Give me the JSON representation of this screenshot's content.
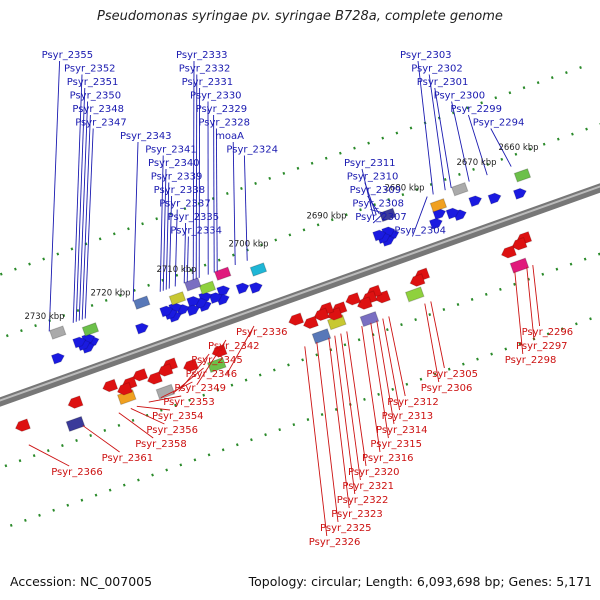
{
  "title": "Pseudomonas syringae pv. syringae B728a, complete genome",
  "accession": "Accession: NC_007005",
  "topology": "Topology: circular; Length: 6,093,698 bp; Genes: 5,171",
  "colors": {
    "forward": "#1a1ae0",
    "reverse": "#dd1111",
    "backbone": "#777777"
  },
  "ticks": [
    {
      "label": "2660 kbp",
      "t": 0.91
    },
    {
      "label": "2670 kbp",
      "t": 0.84
    },
    {
      "label": "2680 kbp",
      "t": 0.72
    },
    {
      "label": "2690 kbp",
      "t": 0.59
    },
    {
      "label": "2700 kbp",
      "t": 0.46
    },
    {
      "label": "2710 kbp",
      "t": 0.34
    },
    {
      "label": "2720 kbp",
      "t": 0.23
    },
    {
      "label": "2730 kbp",
      "t": 0.12
    }
  ],
  "forward_genes": [
    {
      "name": "Psyr_2294",
      "t": 0.88
    },
    {
      "name": "Psyr_2299",
      "t": 0.84
    },
    {
      "name": "Psyr_2300",
      "t": 0.81
    },
    {
      "name": "Psyr_2301",
      "t": 0.78
    },
    {
      "name": "Psyr_2302",
      "t": 0.77
    },
    {
      "name": "Psyr_2303",
      "t": 0.75
    },
    {
      "name": "Psyr_2304",
      "t": 0.74
    },
    {
      "name": "Psyr_2307",
      "t": 0.67
    },
    {
      "name": "Psyr_2308",
      "t": 0.665
    },
    {
      "name": "Psyr_2309",
      "t": 0.66
    },
    {
      "name": "Psyr_2310",
      "t": 0.655
    },
    {
      "name": "Psyr_2311",
      "t": 0.65
    },
    {
      "name": "Psyr_2324",
      "t": 0.44
    },
    {
      "name": "moaA",
      "t": 0.42
    },
    {
      "name": "Psyr_2328",
      "t": 0.39
    },
    {
      "name": "Psyr_2329",
      "t": 0.385
    },
    {
      "name": "Psyr_2330",
      "t": 0.375
    },
    {
      "name": "Psyr_2331",
      "t": 0.36
    },
    {
      "name": "Psyr_2332",
      "t": 0.355
    },
    {
      "name": "Psyr_2333",
      "t": 0.35
    },
    {
      "name": "Psyr_2334",
      "t": 0.34
    },
    {
      "name": "Psyr_2335",
      "t": 0.335
    },
    {
      "name": "Psyr_2337",
      "t": 0.32
    },
    {
      "name": "Psyr_2338",
      "t": 0.31
    },
    {
      "name": "Psyr_2339",
      "t": 0.305
    },
    {
      "name": "Psyr_2340",
      "t": 0.3
    },
    {
      "name": "Psyr_2341",
      "t": 0.295
    },
    {
      "name": "Psyr_2343",
      "t": 0.25
    },
    {
      "name": "Psyr_2347",
      "t": 0.17
    },
    {
      "name": "Psyr_2348",
      "t": 0.165
    },
    {
      "name": "Psyr_2350",
      "t": 0.16
    },
    {
      "name": "Psyr_2351",
      "t": 0.155
    },
    {
      "name": "Psyr_2352",
      "t": 0.15
    },
    {
      "name": "Psyr_2355",
      "t": 0.11
    }
  ],
  "reverse_genes": [
    {
      "name": "Psyr_2296",
      "t": 0.86
    },
    {
      "name": "Psyr_2297",
      "t": 0.85
    },
    {
      "name": "Psyr_2298",
      "t": 0.83
    },
    {
      "name": "Psyr_2305",
      "t": 0.69
    },
    {
      "name": "Psyr_2306",
      "t": 0.68
    },
    {
      "name": "Psyr_2312",
      "t": 0.62
    },
    {
      "name": "Psyr_2313",
      "t": 0.61
    },
    {
      "name": "Psyr_2314",
      "t": 0.6
    },
    {
      "name": "Psyr_2315",
      "t": 0.59
    },
    {
      "name": "Psyr_2316",
      "t": 0.575
    },
    {
      "name": "Psyr_2320",
      "t": 0.55
    },
    {
      "name": "Psyr_2321",
      "t": 0.54
    },
    {
      "name": "Psyr_2322",
      "t": 0.53
    },
    {
      "name": "Psyr_2323",
      "t": 0.52
    },
    {
      "name": "Psyr_2325",
      "t": 0.5
    },
    {
      "name": "Psyr_2326",
      "t": 0.48
    },
    {
      "name": "Psyr_2336",
      "t": 0.35
    },
    {
      "name": "Psyr_2342",
      "t": 0.3
    },
    {
      "name": "Psyr_2345",
      "t": 0.27
    },
    {
      "name": "Psyr_2346",
      "t": 0.26
    },
    {
      "name": "Psyr_2349",
      "t": 0.24
    },
    {
      "name": "Psyr_2353",
      "t": 0.22
    },
    {
      "name": "Psyr_2354",
      "t": 0.2
    },
    {
      "name": "Psyr_2356",
      "t": 0.19
    },
    {
      "name": "Psyr_2358",
      "t": 0.17
    },
    {
      "name": "Psyr_2361",
      "t": 0.11
    },
    {
      "name": "Psyr_2366",
      "t": 0.02
    }
  ]
}
